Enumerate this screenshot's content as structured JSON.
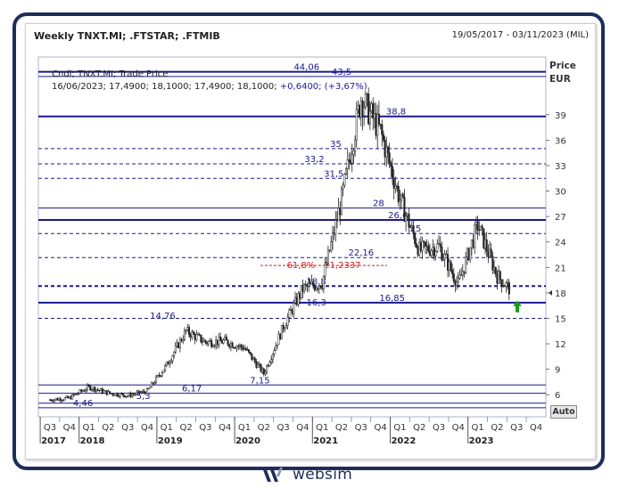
{
  "header": {
    "title": "Weekly TNXT.MI; .FTSTAR; .FTMIB",
    "date_range": "19/05/2017 - 03/11/2023 (MIL)"
  },
  "info": {
    "line1": "Cndl; TNXT.MI; Trade Price",
    "line2_prefix": "16/06/2023; 17,4900; 18,1000; 17,4900; 18,1000;",
    "line2_change": "+0,6400; (+3,67%)"
  },
  "axis": {
    "y_title": "Price",
    "y_unit": "EUR",
    "y_ticks": [
      {
        "value": 39,
        "label": "39"
      },
      {
        "value": 36,
        "label": "36"
      },
      {
        "value": 33,
        "label": "33"
      },
      {
        "value": 30,
        "label": "30"
      },
      {
        "value": 27,
        "label": "27"
      },
      {
        "value": 24,
        "label": "24"
      },
      {
        "value": 21,
        "label": "21"
      },
      {
        "value": 18,
        "label": "18"
      },
      {
        "value": 15,
        "label": "15"
      },
      {
        "value": 12,
        "label": "12"
      },
      {
        "value": 9,
        "label": "9"
      },
      {
        "value": 6,
        "label": "6"
      }
    ],
    "auto_label": "Auto",
    "quarters": [
      "Q3",
      "Q4",
      "Q1",
      "Q2",
      "Q3",
      "Q4",
      "Q1",
      "Q2",
      "Q3",
      "Q4",
      "Q1",
      "Q2",
      "Q3",
      "Q4",
      "Q1",
      "Q2",
      "Q3",
      "Q4",
      "Q1",
      "Q2",
      "Q3",
      "Q4",
      "Q1",
      "Q2",
      "Q3",
      "Q4"
    ],
    "years": [
      {
        "label": "2017",
        "q_index": 0
      },
      {
        "label": "2018",
        "q_index": 2
      },
      {
        "label": "2019",
        "q_index": 6
      },
      {
        "label": "2020",
        "q_index": 10
      },
      {
        "label": "2021",
        "q_index": 14
      },
      {
        "label": "2022",
        "q_index": 18
      },
      {
        "label": "2023",
        "q_index": 22
      }
    ]
  },
  "levels": [
    {
      "value": 44.06,
      "label": "44,06",
      "style": "solid-thick",
      "label_q": 13.2
    },
    {
      "value": 43.5,
      "label": "43,5",
      "style": "solid",
      "label_q": 15.0
    },
    {
      "value": 38.8,
      "label": "38,8",
      "style": "solid-thick",
      "label_q": 17.8
    },
    {
      "value": 35,
      "label": "35",
      "style": "dashed",
      "label_q": 14.7
    },
    {
      "value": 33.2,
      "label": "33,2",
      "style": "dashed",
      "label_q": 13.6
    },
    {
      "value": 31.5,
      "label": "31,5",
      "style": "dashed",
      "label_q": 14.6
    },
    {
      "value": 28,
      "label": "28",
      "style": "solid",
      "label_q": 16.9
    },
    {
      "value": 26.6,
      "label": "26,6",
      "style": "solid-thick",
      "label_q": 17.9
    },
    {
      "value": 25,
      "label": "25",
      "style": "dashed",
      "label_q": 18.8
    },
    {
      "value": 22.16,
      "label": "22,16",
      "style": "dashed",
      "label_q": 16.0
    },
    {
      "value": 18.8,
      "label": "18,8",
      "style": "dashed-thick",
      "label_q": 13.7
    },
    {
      "value": 16.85,
      "label": "16,85",
      "style": "solid-thick",
      "label_q": 17.6
    },
    {
      "value": 16.3,
      "label": "16,3",
      "style": "none",
      "label_q": 13.7
    },
    {
      "value": 15,
      "label": "",
      "style": "dashed",
      "label_q": 0
    },
    {
      "value": 14.76,
      "label": "14,76",
      "style": "none",
      "label_q": 5.8
    },
    {
      "value": 7.15,
      "label": "7,15",
      "style": "solid",
      "label_q": 10.8
    },
    {
      "value": 6.17,
      "label": "6,17",
      "style": "solid",
      "label_q": 7.3
    },
    {
      "value": 5.3,
      "label": "5,3",
      "style": "none",
      "label_q": 4.8
    },
    {
      "value": 5.0,
      "label": "",
      "style": "solid",
      "label_q": 0
    },
    {
      "value": 4.46,
      "label": "4,46",
      "style": "solid",
      "label_q": 1.7
    }
  ],
  "fib": {
    "value": 21.2337,
    "label": "61,8% - 21,2337",
    "color": "#d42020"
  },
  "colors": {
    "accent": "#1a1a8c",
    "frame": "#1e2d5a",
    "arrow": "#1a9a1a",
    "candle": "#222222"
  },
  "chart_data": {
    "type": "line",
    "title": "Weekly TNXT.MI; .FTSTAR; .FTMIB",
    "xlabel": "",
    "ylabel": "Price EUR",
    "ylim": [
      3.4,
      45.8
    ],
    "x": [
      "2017-Q3",
      "2017-Q4",
      "2018-Q1",
      "2018-Q2",
      "2018-Q3",
      "2018-Q4",
      "2019-Q1",
      "2019-Q2",
      "2019-Q3",
      "2019-Q4",
      "2020-Q1",
      "2020-Q2",
      "2020-Q3",
      "2020-Q4",
      "2021-Q1",
      "2021-Q2",
      "2021-Q3",
      "2021-Q4",
      "2022-Q1",
      "2022-Q2",
      "2022-Q3",
      "2022-Q4",
      "2023-Q1",
      "2023-Q2",
      "2023-Q3"
    ],
    "series": [
      {
        "values": [
          5.4,
          5.6,
          6.9,
          6.2,
          5.9,
          6.4,
          9.5,
          13.5,
          12.2,
          12.3,
          11.5,
          8.5,
          14.0,
          18.5,
          19.2,
          29.0,
          41.0,
          37.0,
          29.0,
          23.0,
          23.5,
          19.0,
          26.0,
          20.0,
          17.6
        ]
      }
    ],
    "last_candle": {
      "date": "16/06/2023",
      "open": 17.49,
      "high": 18.1,
      "low": 17.49,
      "close": 18.1,
      "change": 0.64,
      "change_pct": 3.67
    },
    "grid": false
  }
}
